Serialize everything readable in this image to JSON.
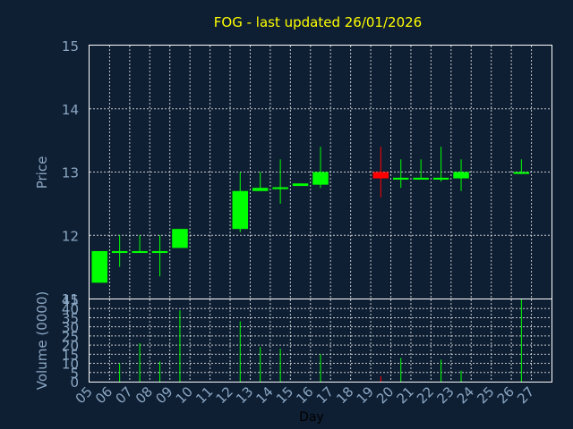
{
  "chart_data": [
    {
      "type": "candlestick",
      "title": "FOG - last updated 26/01/2026",
      "ylabel": "Price",
      "ylim": [
        11,
        15
      ],
      "yticks": [
        "11",
        "12",
        "13",
        "14",
        "15"
      ],
      "x_ticks": [
        "05",
        "06",
        "07",
        "08",
        "09",
        "10",
        "11",
        "12",
        "13",
        "14",
        "15",
        "16",
        "17",
        "18",
        "19",
        "20",
        "21",
        "22",
        "23",
        "24",
        "25",
        "26",
        "27"
      ],
      "grid": true,
      "colors": {
        "up": "#00ff00",
        "down": "#ff0000",
        "title": "#ffff00",
        "axis_text": "#8aa6c2",
        "background": "#0f1f33"
      },
      "candles": [
        {
          "day": "05",
          "open": 11.25,
          "high": 11.75,
          "low": 11.25,
          "close": 11.75
        },
        {
          "day": "06",
          "open": 11.72,
          "high": 12.0,
          "low": 11.5,
          "close": 11.75
        },
        {
          "day": "07",
          "open": 11.72,
          "high": 12.0,
          "low": 11.72,
          "close": 11.75
        },
        {
          "day": "08",
          "open": 11.72,
          "high": 12.0,
          "low": 11.35,
          "close": 11.75
        },
        {
          "day": "09",
          "open": 11.8,
          "high": 12.1,
          "low": 11.8,
          "close": 12.1
        },
        {
          "day": "12",
          "open": 12.1,
          "high": 13.0,
          "low": 12.05,
          "close": 12.7
        },
        {
          "day": "13",
          "open": 12.7,
          "high": 13.0,
          "low": 12.7,
          "close": 12.75
        },
        {
          "day": "14",
          "open": 12.73,
          "high": 13.2,
          "low": 12.5,
          "close": 12.76
        },
        {
          "day": "15",
          "open": 12.78,
          "high": 12.82,
          "low": 12.78,
          "close": 12.82
        },
        {
          "day": "16",
          "open": 12.8,
          "high": 13.4,
          "low": 12.75,
          "close": 13.0
        },
        {
          "day": "19",
          "open": 13.0,
          "high": 13.4,
          "low": 12.6,
          "close": 12.9
        },
        {
          "day": "20",
          "open": 12.88,
          "high": 13.2,
          "low": 12.75,
          "close": 12.91
        },
        {
          "day": "21",
          "open": 12.88,
          "high": 13.2,
          "low": 12.88,
          "close": 12.91
        },
        {
          "day": "22",
          "open": 12.88,
          "high": 13.4,
          "low": 12.85,
          "close": 12.91
        },
        {
          "day": "23",
          "open": 12.9,
          "high": 13.2,
          "low": 12.7,
          "close": 13.0
        },
        {
          "day": "26",
          "open": 12.97,
          "high": 13.2,
          "low": 12.97,
          "close": 13.0
        }
      ]
    },
    {
      "type": "bar",
      "ylabel": "Volume (0000)",
      "xlabel": "Day",
      "ylim": [
        0,
        45
      ],
      "yticks": [
        "0",
        "5",
        "10",
        "15",
        "20",
        "25",
        "30",
        "35",
        "40",
        "45"
      ],
      "categories": [
        "05",
        "06",
        "07",
        "08",
        "09",
        "12",
        "13",
        "14",
        "15",
        "16",
        "19",
        "20",
        "21",
        "22",
        "23",
        "26"
      ],
      "values": [
        0,
        10,
        21,
        11,
        39,
        33,
        19,
        18,
        0,
        15,
        3,
        13,
        0,
        12,
        6,
        45
      ],
      "bar_colors": [
        "#00ff00",
        "#00ff00",
        "#00ff00",
        "#00ff00",
        "#00ff00",
        "#00ff00",
        "#00ff00",
        "#00ff00",
        "#00ff00",
        "#00ff00",
        "#ff0000",
        "#00ff00",
        "#00ff00",
        "#00ff00",
        "#00ff00",
        "#00ff00"
      ]
    }
  ]
}
